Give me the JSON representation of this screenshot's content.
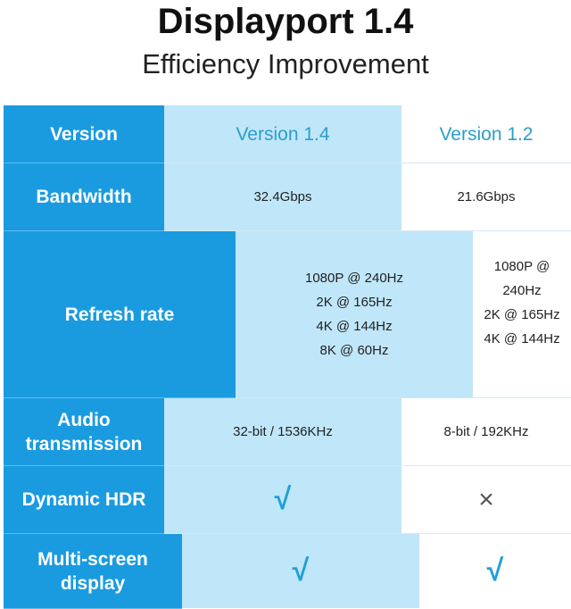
{
  "title": "Displayport 1.4",
  "subtitle": "Efficiency Improvement",
  "table": {
    "header": [
      "Version",
      "Version 1.4",
      "Version 1.2"
    ],
    "rows": [
      {
        "label": "Bandwidth",
        "v14": "32.4Gbps",
        "v12": "21.6Gbps"
      },
      {
        "label": "Refresh rate",
        "v14": [
          "1080P @ 240Hz",
          "2K @ 165Hz",
          "4K @ 144Hz",
          "8K @ 60Hz"
        ],
        "v12": [
          "1080P @ 240Hz",
          "2K @ 165Hz",
          "4K @ 144Hz"
        ]
      },
      {
        "label": "Audio transmission",
        "v14": "32-bit / 1536KHz",
        "v12": "8-bit / 192KHz"
      },
      {
        "label": "Dynamic HDR",
        "v14": "√",
        "v12": "×"
      },
      {
        "label": "Multi-screen display",
        "v14": "√",
        "v12": "√"
      }
    ]
  },
  "colors": {
    "label_column": "#1a9be0",
    "highlight_column": "#c0e6f9",
    "accent_text": "#2a9fc9"
  }
}
